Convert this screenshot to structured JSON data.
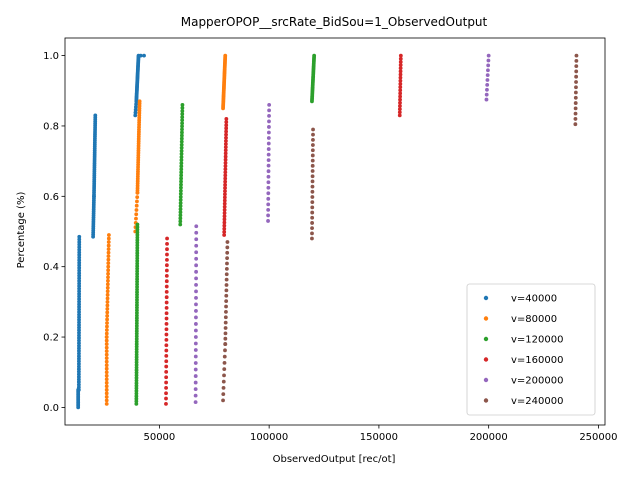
{
  "chart_data": {
    "type": "scatter",
    "title": "MapperOPOP__srcRate_BidSou=1_ObservedOutput",
    "xlabel": "ObservedOutput [rec/ot]",
    "ylabel": "Percentage (%)",
    "xlim": [
      7000,
      253000
    ],
    "ylim": [
      -0.05,
      1.05
    ],
    "xticks": [
      50000,
      100000,
      150000,
      200000,
      250000
    ],
    "xtick_labels": [
      "50000",
      "100000",
      "150000",
      "200000",
      "250000"
    ],
    "yticks": [
      0.0,
      0.2,
      0.4,
      0.6,
      0.8,
      1.0
    ],
    "ytick_labels": [
      "0.0",
      "0.2",
      "0.4",
      "0.6",
      "0.8",
      "1.0"
    ],
    "grid": false,
    "legend_position": "bottom-right",
    "series": [
      {
        "name": "v=40000",
        "color": "#1f77b4",
        "segments": [
          {
            "x_start": 13000,
            "x_end": 13000,
            "y_start": 0.0,
            "y_end": 0.05,
            "n": 12
          },
          {
            "x_start": 13300,
            "x_end": 13500,
            "y_start": 0.05,
            "y_end": 0.485,
            "n": 60
          },
          {
            "x_start": 19800,
            "x_end": 20200,
            "y_start": 0.485,
            "y_end": 0.6,
            "n": 20
          },
          {
            "x_start": 20200,
            "x_end": 20800,
            "y_start": 0.6,
            "y_end": 0.83,
            "n": 40
          },
          {
            "x_start": 39000,
            "x_end": 39500,
            "y_start": 0.83,
            "y_end": 0.87,
            "n": 6
          },
          {
            "x_start": 39500,
            "x_end": 40500,
            "y_start": 0.87,
            "y_end": 1.0,
            "n": 40
          }
        ],
        "extra_points": [
          {
            "x": 41500,
            "y": 1.0
          },
          {
            "x": 43000,
            "y": 1.0
          }
        ]
      },
      {
        "name": "v=80000",
        "color": "#ff7f0e",
        "segments": [
          {
            "x_start": 26000,
            "x_end": 26000,
            "y_start": 0.01,
            "y_end": 0.2,
            "n": 20
          },
          {
            "x_start": 26000,
            "x_end": 27000,
            "y_start": 0.2,
            "y_end": 0.49,
            "n": 30
          },
          {
            "x_start": 39000,
            "x_end": 40000,
            "y_start": 0.5,
            "y_end": 0.61,
            "n": 10
          },
          {
            "x_start": 40000,
            "x_end": 41000,
            "y_start": 0.61,
            "y_end": 0.87,
            "n": 40
          },
          {
            "x_start": 79000,
            "x_end": 80000,
            "y_start": 0.85,
            "y_end": 1.0,
            "n": 40
          }
        ],
        "extra_points": []
      },
      {
        "name": "v=120000",
        "color": "#2ca02c",
        "segments": [
          {
            "x_start": 39500,
            "x_end": 40000,
            "y_start": 0.01,
            "y_end": 0.52,
            "n": 70
          },
          {
            "x_start": 59500,
            "x_end": 60500,
            "y_start": 0.52,
            "y_end": 0.86,
            "n": 40
          },
          {
            "x_start": 119500,
            "x_end": 120500,
            "y_start": 0.87,
            "y_end": 1.0,
            "n": 30
          }
        ],
        "extra_points": []
      },
      {
        "name": "v=160000",
        "color": "#d62728",
        "segments": [
          {
            "x_start": 53000,
            "x_end": 53500,
            "y_start": 0.01,
            "y_end": 0.48,
            "n": 32
          },
          {
            "x_start": 79500,
            "x_end": 80500,
            "y_start": 0.49,
            "y_end": 0.82,
            "n": 38
          },
          {
            "x_start": 159500,
            "x_end": 160000,
            "y_start": 0.83,
            "y_end": 1.0,
            "n": 20
          }
        ],
        "extra_points": []
      },
      {
        "name": "v=200000",
        "color": "#9467bd",
        "segments": [
          {
            "x_start": 66500,
            "x_end": 66800,
            "y_start": 0.015,
            "y_end": 0.515,
            "n": 28
          },
          {
            "x_start": 99500,
            "x_end": 100000,
            "y_start": 0.53,
            "y_end": 0.86,
            "n": 22
          },
          {
            "x_start": 199000,
            "x_end": 200000,
            "y_start": 0.875,
            "y_end": 1.0,
            "n": 10
          }
        ],
        "extra_points": []
      },
      {
        "name": "v=240000",
        "color": "#8c564b",
        "segments": [
          {
            "x_start": 79000,
            "x_end": 80000,
            "y_start": 0.02,
            "y_end": 0.18,
            "n": 10
          },
          {
            "x_start": 80000,
            "x_end": 81000,
            "y_start": 0.18,
            "y_end": 0.47,
            "n": 20
          },
          {
            "x_start": 119500,
            "x_end": 120000,
            "y_start": 0.48,
            "y_end": 0.79,
            "n": 22
          },
          {
            "x_start": 239500,
            "x_end": 240000,
            "y_start": 0.805,
            "y_end": 1.0,
            "n": 14
          }
        ],
        "extra_points": []
      }
    ]
  }
}
